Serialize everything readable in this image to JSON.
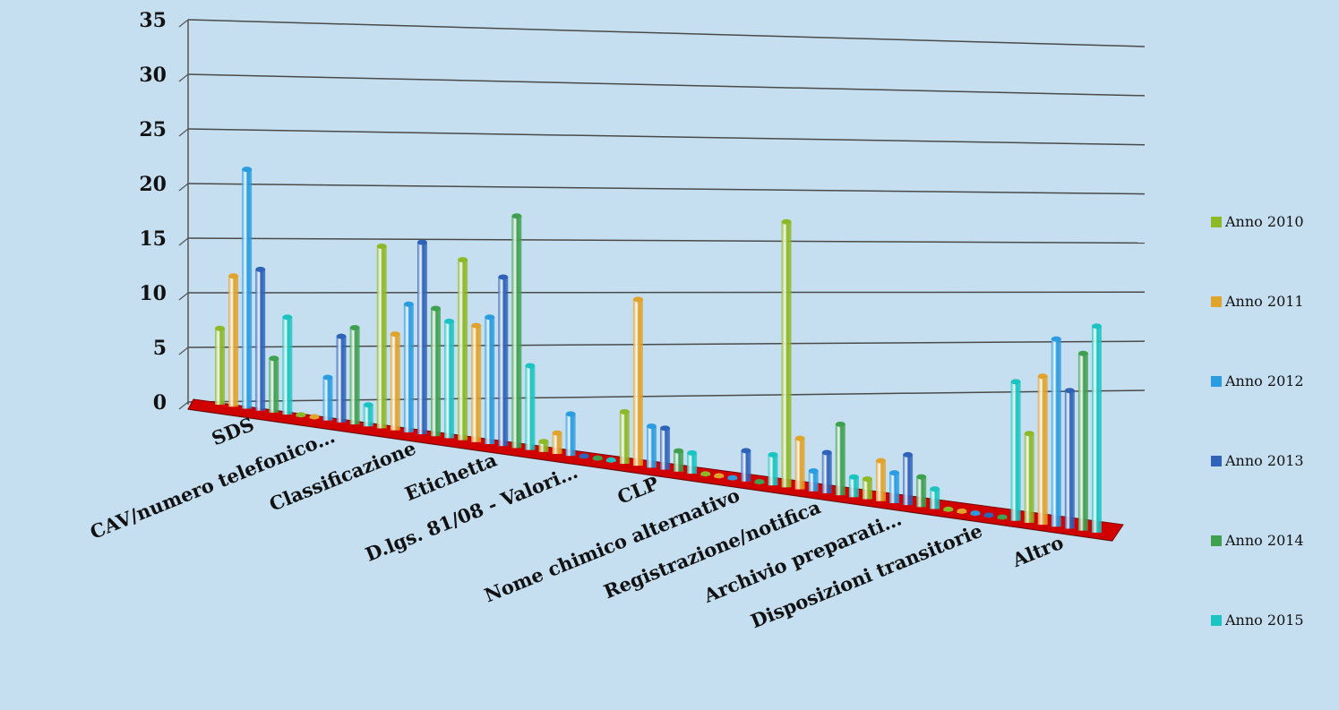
{
  "chart_data": {
    "type": "bar",
    "categories": [
      "SDS",
      "CAV/numero telefonico…",
      "Classificazione",
      "Etichetta",
      "D.lgs. 81/08 - Valori…",
      "CLP",
      "Nome chimico alternativo",
      "Registrazione/notifica",
      "Archivio preparati…",
      "Disposizioni transitorie",
      "Altro"
    ],
    "series": [
      {
        "name": "Anno 2010",
        "color": "#8db827",
        "values": [
          7,
          0,
          17,
          17,
          1,
          5,
          0,
          26,
          2,
          0,
          9
        ]
      },
      {
        "name": "Anno 2011",
        "color": "#e0a32c",
        "values": [
          12,
          0,
          9,
          11,
          2,
          16,
          0,
          5,
          4,
          0,
          15
        ]
      },
      {
        "name": "Anno 2012",
        "color": "#2b9ce0",
        "values": [
          22,
          4,
          12,
          12,
          4,
          4,
          0,
          2,
          3,
          0,
          19
        ]
      },
      {
        "name": "Anno 2013",
        "color": "#2e63b8",
        "values": [
          13,
          8,
          18,
          16,
          0,
          4,
          3,
          4,
          5,
          0,
          14
        ]
      },
      {
        "name": "Anno 2014",
        "color": "#3fa050",
        "values": [
          5,
          9,
          12,
          22,
          0,
          2,
          0,
          7,
          3,
          0,
          18
        ]
      },
      {
        "name": "Anno 2015",
        "color": "#1bc4c0",
        "values": [
          9,
          2,
          11,
          8,
          0,
          2,
          3,
          2,
          2,
          14,
          21
        ]
      }
    ],
    "ylim": [
      0,
      35
    ],
    "yticks": [
      "0",
      "5",
      "10",
      "15",
      "20",
      "25",
      "30",
      "35"
    ],
    "grid": true,
    "floor_color": "#d10000",
    "legend_position": "right"
  }
}
